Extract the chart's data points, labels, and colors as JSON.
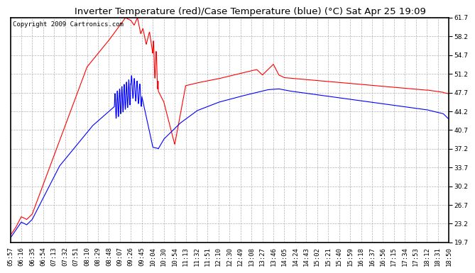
{
  "title": "Inverter Temperature (red)/Case Temperature (blue) (°C) Sat Apr 25 19:09",
  "copyright": "Copyright 2009 Cartronics.com",
  "y_ticks": [
    19.7,
    23.2,
    26.7,
    30.2,
    33.7,
    37.2,
    40.7,
    44.2,
    47.7,
    51.2,
    54.7,
    58.2,
    61.7
  ],
  "ylim": [
    19.7,
    61.7
  ],
  "x_labels": [
    "05:57",
    "06:16",
    "06:35",
    "06:54",
    "07:13",
    "07:32",
    "07:51",
    "08:10",
    "08:29",
    "08:48",
    "09:07",
    "09:26",
    "09:45",
    "10:04",
    "10:30",
    "10:54",
    "11:13",
    "11:32",
    "11:51",
    "12:10",
    "12:30",
    "12:49",
    "13:08",
    "13:27",
    "13:46",
    "14:05",
    "14:24",
    "14:43",
    "15:02",
    "15:21",
    "15:40",
    "15:59",
    "16:18",
    "16:37",
    "16:56",
    "17:15",
    "17:34",
    "17:53",
    "18:12",
    "18:31",
    "18:50"
  ],
  "red_color": "#FF0000",
  "blue_color": "#0000FF",
  "bg_color": "#FFFFFF",
  "plot_bg_color": "#FFFFFF",
  "grid_color": "#AAAAAA",
  "title_fontsize": 9.5,
  "copyright_fontsize": 6.5,
  "tick_fontsize": 6.5
}
